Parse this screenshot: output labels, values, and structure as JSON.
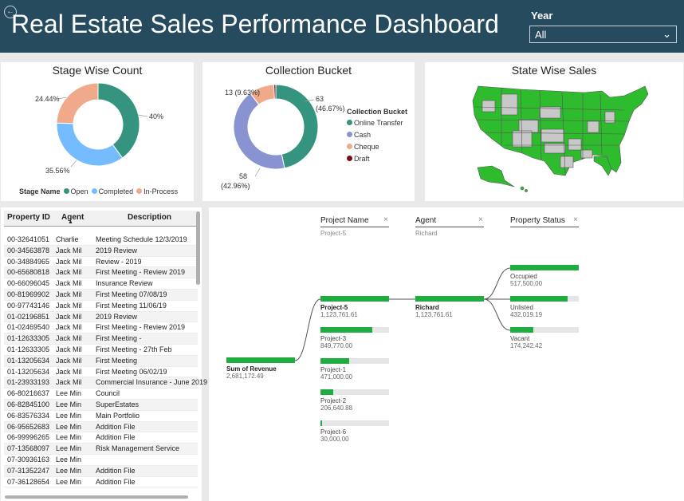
{
  "header": {
    "title": "Real Estate Sales Performance Dashboard",
    "year_label": "Year",
    "year_value": "All"
  },
  "stage_chart": {
    "title": "Stage Wise Count",
    "legend_title": "Stage Name",
    "slices": [
      {
        "name": "Open",
        "value": 40,
        "label": "40%",
        "color": "#35947f"
      },
      {
        "name": "Completed",
        "value": 35.56,
        "label": "35.56%",
        "color": "#74bbff"
      },
      {
        "name": "In-Process",
        "value": 24.44,
        "label": "24.44%",
        "color": "#f0a98a"
      }
    ]
  },
  "collection_chart": {
    "title": "Collection Bucket",
    "legend_title": "Collection Bucket",
    "slices": [
      {
        "name": "Online Transfer",
        "value": 63,
        "label_count": "63",
        "label_pct": "(46.67%)",
        "color": "#35947f"
      },
      {
        "name": "Cash",
        "value": 58,
        "label_count": "58",
        "label_pct": "(42.96%)",
        "color": "#8a93d1"
      },
      {
        "name": "Cheque",
        "value": 13,
        "label": "13 (9.63%)",
        "color": "#f0a98a"
      },
      {
        "name": "Draft",
        "value": 1,
        "color": "#7a0c18"
      }
    ]
  },
  "map_card": {
    "title": "State Wise Sales"
  },
  "table": {
    "columns": [
      "Property ID",
      "Agent",
      "Description"
    ],
    "rows": [
      [
        "00-32641051",
        "Charlie",
        "Meeting Schedule 12/3/2019"
      ],
      [
        "00-34563878",
        "Jack Mil",
        "2019 Review"
      ],
      [
        "00-34884965",
        "Jack Mil",
        "Review - 2019"
      ],
      [
        "00-65680818",
        "Jack Mil",
        "First Meeting - Review 2019"
      ],
      [
        "00-66096045",
        "Jack Mil",
        "Insurance Review"
      ],
      [
        "00-81969902",
        "Jack Mil",
        "First Meeting 07/08/19"
      ],
      [
        "00-97743146",
        "Jack Mil",
        "First Meeting 11/06/19"
      ],
      [
        "01-02196851",
        "Jack Mil",
        "2019 Review"
      ],
      [
        "01-02469540",
        "Jack Mil",
        "First Meeting - Review 2019"
      ],
      [
        "01-12633305",
        "Jack Mil",
        "First Meeting -"
      ],
      [
        "01-12633305",
        "Jack Mil",
        "First Meeting - 27th Feb"
      ],
      [
        "01-13205634",
        "Jack Mil",
        "First Meeting"
      ],
      [
        "01-13205634",
        "Jack Mil",
        "First Meeting 06/02/19"
      ],
      [
        "01-23933193",
        "Jack Mil",
        "Commercial Insurance - June 2019"
      ],
      [
        "06-80216637",
        "Lee Min",
        "Council"
      ],
      [
        "06-82845100",
        "Lee Min",
        "SuperEstates"
      ],
      [
        "06-83576334",
        "Lee Min",
        "Main Portfolio"
      ],
      [
        "06-95652683",
        "Lee Min",
        "Addition File"
      ],
      [
        "06-99996265",
        "Lee Min",
        "Addition File"
      ],
      [
        "07-13568097",
        "Lee Min",
        "Risk Management Service"
      ],
      [
        "07-30936163",
        "Lee Min",
        ""
      ],
      [
        "07-31352247",
        "Lee Min",
        "Addition File"
      ],
      [
        "07-36128654",
        "Lee Min",
        "Addition File"
      ]
    ]
  },
  "decomp": {
    "levels": [
      {
        "title": "Project Name",
        "selected": "Project-5"
      },
      {
        "title": "Agent",
        "selected": "Richard"
      },
      {
        "title": "Property Status",
        "selected": ""
      }
    ],
    "root": {
      "name": "Sum of Revenue",
      "value": "2,681,172.49",
      "fraction": 1.0
    },
    "projects": [
      {
        "name": "Project-5",
        "value": "1,123,761.61",
        "fraction": 1.0
      },
      {
        "name": "Project-3",
        "value": "849,770.00",
        "fraction": 0.756
      },
      {
        "name": "Project-1",
        "value": "471,000.00",
        "fraction": 0.419
      },
      {
        "name": "Project-2",
        "value": "206,640.88",
        "fraction": 0.184
      },
      {
        "name": "Project-6",
        "value": "30,000.00",
        "fraction": 0.027
      }
    ],
    "agents": [
      {
        "name": "Richard",
        "value": "1,123,761.61",
        "fraction": 1.0
      }
    ],
    "statuses": [
      {
        "name": "Occupied",
        "value": "517,500.00",
        "fraction": 1.0
      },
      {
        "name": "Unlisted",
        "value": "432,019.19",
        "fraction": 0.835
      },
      {
        "name": "Vacant",
        "value": "174,242.42",
        "fraction": 0.337
      }
    ]
  }
}
